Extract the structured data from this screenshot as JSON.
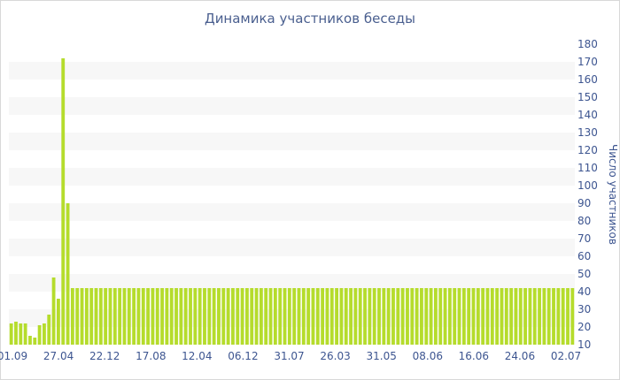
{
  "chart_data": {
    "type": "bar",
    "title": "Динамика участников беседы",
    "xlabel": "",
    "ylabel": "Число участников",
    "ylim": [
      10,
      180
    ],
    "ytick_step": 10,
    "y_axis_side": "right",
    "grid": "alternating horizontal bands",
    "legend": "none",
    "bar_color": "#b5dc2c",
    "band_color": "#f7f7f7",
    "text_color": "#3d5590",
    "x_tick_labels": [
      "01.09",
      "27.04",
      "22.12",
      "17.08",
      "12.04",
      "06.12",
      "31.07",
      "26.03",
      "31.05",
      "08.06",
      "16.06",
      "24.06",
      "02.07"
    ],
    "values": [
      22,
      23,
      22,
      22,
      15,
      14,
      21,
      22,
      27,
      48,
      36,
      172,
      90,
      42,
      42,
      42,
      42,
      42,
      42,
      42,
      42,
      42,
      42,
      42,
      42,
      42,
      42,
      42,
      42,
      42,
      42,
      42,
      42,
      42,
      42,
      42,
      42,
      42,
      42,
      42,
      42,
      42,
      42,
      42,
      42,
      42,
      42,
      42,
      42,
      42,
      42,
      42,
      42,
      42,
      42,
      42,
      42,
      42,
      42,
      42,
      42,
      42,
      42,
      42,
      42,
      42,
      42,
      42,
      42,
      42,
      42,
      42,
      42,
      42,
      42,
      42,
      42,
      42,
      42,
      42,
      42,
      42,
      42,
      42,
      42,
      42,
      42,
      42,
      42,
      42,
      42,
      42,
      42,
      42,
      42,
      42,
      42,
      42,
      42,
      42,
      42,
      42,
      42,
      42,
      42,
      42,
      42,
      42,
      42,
      42,
      42,
      42,
      42,
      42,
      42,
      42,
      42,
      42,
      42,
      42
    ]
  }
}
